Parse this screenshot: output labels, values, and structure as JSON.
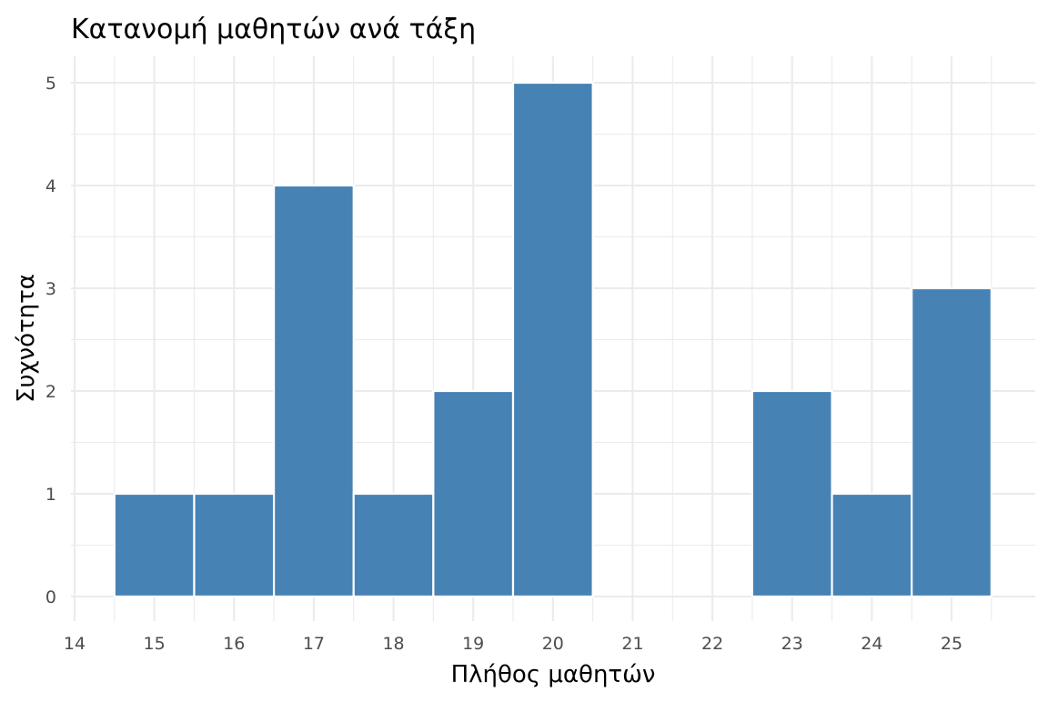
{
  "chart_data": {
    "type": "bar",
    "title": "Κατανομή μαθητών ανά τάξη",
    "xlabel": "Πλήθος μαθητών",
    "ylabel": "Συχνότητα",
    "x": [
      15,
      16,
      17,
      18,
      19,
      20,
      23,
      24,
      25
    ],
    "values": [
      1,
      1,
      4,
      1,
      2,
      5,
      2,
      1,
      3
    ],
    "bin_width": 1,
    "xlim": [
      14,
      26
    ],
    "ylim": [
      0,
      5.25
    ],
    "x_ticks": [
      14,
      15,
      16,
      17,
      18,
      19,
      20,
      21,
      22,
      23,
      24,
      25
    ],
    "y_ticks": [
      0,
      1,
      2,
      3,
      4,
      5
    ],
    "bar_color": "#4682B4",
    "bar_edge_color": "#ffffff",
    "grid": true,
    "legend": "none"
  }
}
